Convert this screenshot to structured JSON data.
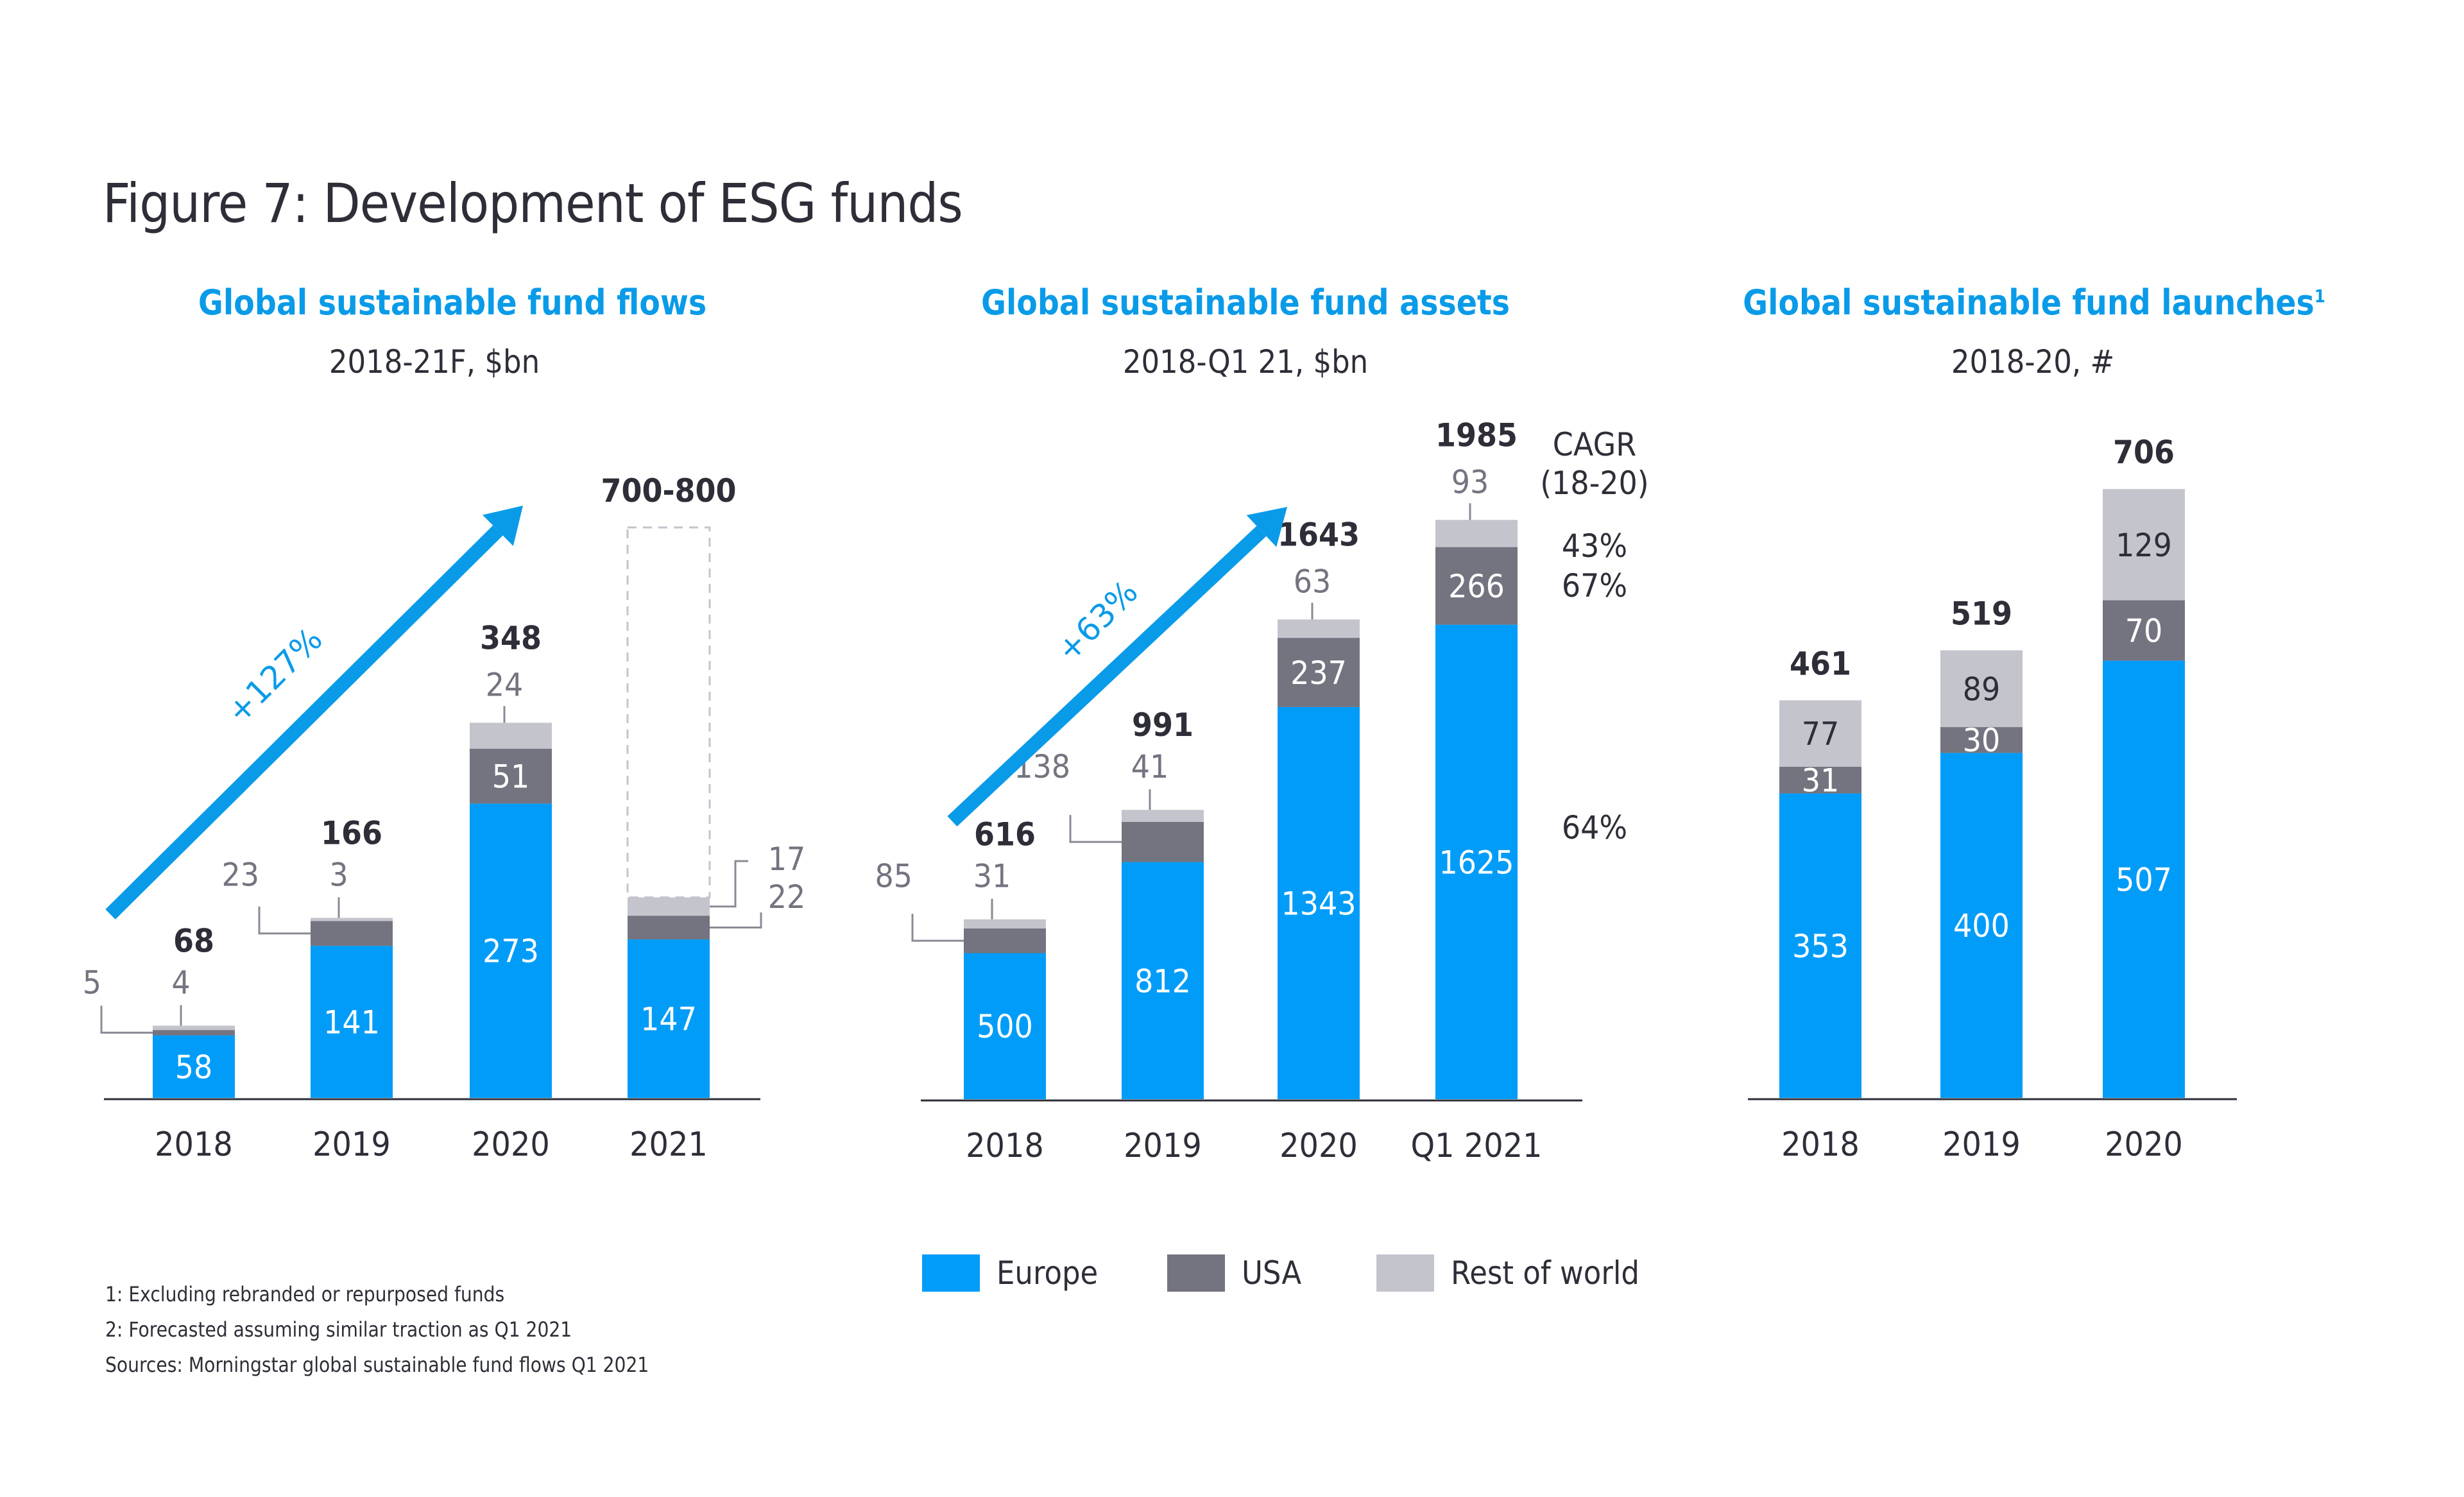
{
  "figure_title": "Figure 7: Development of ESG funds",
  "colors": {
    "europe": "#009cf8",
    "usa": "#747480",
    "rest": "#c4c4cd",
    "accent": "#0a9be8",
    "text": "#2e2e38",
    "muted": "#747480"
  },
  "legend": [
    {
      "key": "europe",
      "label": "Europe"
    },
    {
      "key": "usa",
      "label": "USA"
    },
    {
      "key": "rest",
      "label": "Rest of world"
    }
  ],
  "footnotes": [
    "1: Excluding rebranded or repurposed funds",
    "2: Forecasted assuming similar traction as Q1 2021",
    "Sources: Morningstar global sustainable fund flows Q1 2021"
  ],
  "chart_data": [
    {
      "type": "bar",
      "stacked": true,
      "title": "Global sustainable fund flows",
      "subtitle": "2018-21F, $bn",
      "categories": [
        "2018",
        "2019",
        "2020",
        "2021"
      ],
      "series": [
        {
          "name": "Europe",
          "values": [
            58,
            141,
            273,
            147
          ]
        },
        {
          "name": "USA",
          "values": [
            5,
            23,
            51,
            22
          ]
        },
        {
          "name": "Rest of world",
          "values": [
            4,
            3,
            24,
            17
          ]
        }
      ],
      "totals": [
        "68",
        "166",
        "348",
        "700-800"
      ],
      "forecast_range": {
        "category": "2021",
        "low": 700,
        "high": 800,
        "style": "dashed-outline"
      },
      "growth_arrow": {
        "label": "+127%"
      },
      "xlabel": "",
      "ylabel": "",
      "grid": false
    },
    {
      "type": "bar",
      "stacked": true,
      "title": "Global sustainable fund assets",
      "subtitle": "2018-Q1 21, $bn",
      "categories": [
        "2018",
        "2019",
        "2020",
        "Q1 2021"
      ],
      "series": [
        {
          "name": "Europe",
          "values": [
            500,
            812,
            1343,
            1625
          ]
        },
        {
          "name": "USA",
          "values": [
            85,
            138,
            237,
            266
          ]
        },
        {
          "name": "Rest of world",
          "values": [
            31,
            41,
            63,
            93
          ]
        }
      ],
      "totals": [
        "616",
        "991",
        "1643",
        "1985"
      ],
      "growth_arrow": {
        "label": "+63%"
      },
      "cagr": {
        "header": "CAGR",
        "period": "(18-20)",
        "rest": "43%",
        "usa": "67%",
        "europe": "64%"
      },
      "xlabel": "",
      "ylabel": "",
      "grid": false
    },
    {
      "type": "bar",
      "stacked": true,
      "title": "Global sustainable fund launches",
      "title_superscript": "1",
      "subtitle": "2018-20, #",
      "categories": [
        "2018",
        "2019",
        "2020"
      ],
      "series": [
        {
          "name": "Europe",
          "values": [
            353,
            400,
            507
          ]
        },
        {
          "name": "USA",
          "values": [
            31,
            30,
            70
          ]
        },
        {
          "name": "Rest of world",
          "values": [
            77,
            89,
            129
          ]
        }
      ],
      "totals": [
        "461",
        "519",
        "706"
      ],
      "xlabel": "",
      "ylabel": "",
      "grid": false
    }
  ]
}
